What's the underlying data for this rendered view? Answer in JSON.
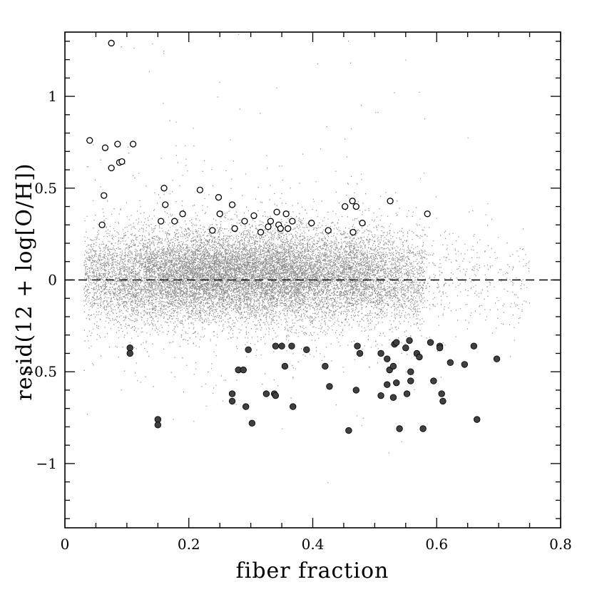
{
  "chart_data": {
    "type": "scatter",
    "title": "",
    "xlabel": "fiber fraction",
    "ylabel": "resid(12 + log[O/H])",
    "xlim": [
      0,
      0.8
    ],
    "ylim": [
      -1.35,
      1.35
    ],
    "x_ticks": [
      {
        "value": 0,
        "label": "0"
      },
      {
        "value": 0.2,
        "label": "0.2"
      },
      {
        "value": 0.4,
        "label": "0.4"
      },
      {
        "value": 0.6,
        "label": "0.6"
      },
      {
        "value": 0.8,
        "label": "0.8"
      }
    ],
    "y_ticks": [
      {
        "value": -1,
        "label": "−1"
      },
      {
        "value": -0.5,
        "label": "−0.5"
      },
      {
        "value": 0,
        "label": "0"
      },
      {
        "value": 0.5,
        "label": "0.5"
      },
      {
        "value": 1,
        "label": "1"
      }
    ],
    "reference_line": {
      "y": 0,
      "style": "dashed"
    },
    "grid": false,
    "legend": "none",
    "colors": {
      "background_points": "#8c8c8c",
      "open_marker": "#000000",
      "filled_marker": "#404040"
    },
    "background_distribution": {
      "description_visible": false,
      "x_range": [
        0.02,
        0.75
      ],
      "core_y_center": 0.03,
      "core_y_spread": 0.12
    },
    "series": [
      {
        "marker": "open-circle",
        "points": [
          [
            0.075,
            1.29
          ],
          [
            0.04,
            0.76
          ],
          [
            0.065,
            0.72
          ],
          [
            0.085,
            0.74
          ],
          [
            0.11,
            0.74
          ],
          [
            0.075,
            0.61
          ],
          [
            0.088,
            0.64
          ],
          [
            0.092,
            0.645
          ],
          [
            0.063,
            0.46
          ],
          [
            0.06,
            0.3
          ],
          [
            0.16,
            0.5
          ],
          [
            0.218,
            0.49
          ],
          [
            0.248,
            0.45
          ],
          [
            0.162,
            0.41
          ],
          [
            0.19,
            0.36
          ],
          [
            0.155,
            0.32
          ],
          [
            0.177,
            0.32
          ],
          [
            0.25,
            0.36
          ],
          [
            0.27,
            0.41
          ],
          [
            0.29,
            0.32
          ],
          [
            0.238,
            0.27
          ],
          [
            0.274,
            0.28
          ],
          [
            0.305,
            0.35
          ],
          [
            0.316,
            0.26
          ],
          [
            0.328,
            0.29
          ],
          [
            0.332,
            0.32
          ],
          [
            0.342,
            0.37
          ],
          [
            0.345,
            0.3
          ],
          [
            0.348,
            0.28
          ],
          [
            0.357,
            0.36
          ],
          [
            0.36,
            0.28
          ],
          [
            0.367,
            0.32
          ],
          [
            0.398,
            0.31
          ],
          [
            0.425,
            0.27
          ],
          [
            0.452,
            0.4
          ],
          [
            0.464,
            0.43
          ],
          [
            0.47,
            0.4
          ],
          [
            0.465,
            0.26
          ],
          [
            0.48,
            0.31
          ],
          [
            0.525,
            0.43
          ],
          [
            0.585,
            0.36
          ]
        ]
      },
      {
        "marker": "filled-circle",
        "points": [
          [
            0.105,
            -0.37
          ],
          [
            0.105,
            -0.4
          ],
          [
            0.15,
            -0.76
          ],
          [
            0.15,
            -0.79
          ],
          [
            0.296,
            -0.38
          ],
          [
            0.34,
            -0.36
          ],
          [
            0.35,
            -0.36
          ],
          [
            0.366,
            -0.36
          ],
          [
            0.39,
            -0.38
          ],
          [
            0.28,
            -0.49
          ],
          [
            0.288,
            -0.49
          ],
          [
            0.355,
            -0.47
          ],
          [
            0.42,
            -0.47
          ],
          [
            0.427,
            -0.58
          ],
          [
            0.27,
            -0.62
          ],
          [
            0.27,
            -0.66
          ],
          [
            0.292,
            -0.69
          ],
          [
            0.302,
            -0.78
          ],
          [
            0.325,
            -0.62
          ],
          [
            0.338,
            -0.62
          ],
          [
            0.34,
            -0.63
          ],
          [
            0.368,
            -0.69
          ],
          [
            0.458,
            -0.82
          ],
          [
            0.47,
            -0.6
          ],
          [
            0.472,
            -0.36
          ],
          [
            0.476,
            -0.4
          ],
          [
            0.51,
            -0.4
          ],
          [
            0.51,
            -0.63
          ],
          [
            0.52,
            -0.43
          ],
          [
            0.52,
            -0.57
          ],
          [
            0.524,
            -0.49
          ],
          [
            0.53,
            -0.64
          ],
          [
            0.53,
            -0.47
          ],
          [
            0.532,
            -0.35
          ],
          [
            0.535,
            -0.34
          ],
          [
            0.535,
            -0.56
          ],
          [
            0.54,
            -0.81
          ],
          [
            0.55,
            -0.37
          ],
          [
            0.552,
            -0.62
          ],
          [
            0.556,
            -0.33
          ],
          [
            0.558,
            -0.5
          ],
          [
            0.558,
            -0.55
          ],
          [
            0.568,
            -0.4
          ],
          [
            0.572,
            -0.42
          ],
          [
            0.578,
            -0.81
          ],
          [
            0.59,
            -0.34
          ],
          [
            0.595,
            -0.55
          ],
          [
            0.605,
            -0.36
          ],
          [
            0.605,
            -0.37
          ],
          [
            0.608,
            -0.62
          ],
          [
            0.61,
            -0.66
          ],
          [
            0.622,
            -0.45
          ],
          [
            0.645,
            -0.46
          ],
          [
            0.66,
            -0.36
          ],
          [
            0.665,
            -0.76
          ],
          [
            0.697,
            -0.43
          ]
        ]
      }
    ]
  }
}
